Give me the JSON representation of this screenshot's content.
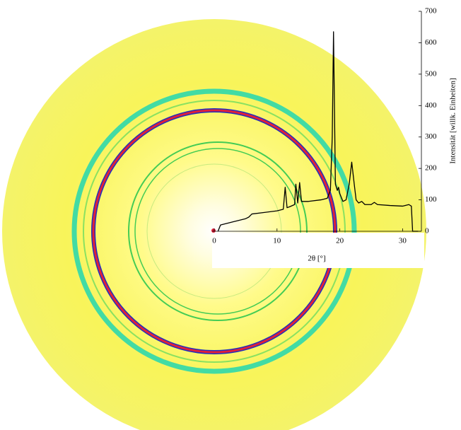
{
  "chart_data": {
    "type": "line",
    "xlabel": "2θ [°]",
    "ylabel": "Intensität [willk. Einheiten]",
    "x": [
      0.6,
      1,
      3,
      5,
      5.5,
      6,
      8,
      10,
      11,
      11.3,
      11.6,
      12,
      12.8,
      13,
      13.3,
      13.6,
      13.9,
      15,
      17,
      18,
      18.5,
      18.8,
      19,
      19.3,
      19.6,
      19.8,
      20,
      20.5,
      21,
      21.5,
      21.9,
      22.3,
      22.6,
      23,
      23.5,
      24,
      25,
      25.5,
      26,
      28,
      30,
      31,
      31.4,
      31.6,
      32.5
    ],
    "values": [
      0,
      20,
      30,
      40,
      45,
      55,
      60,
      65,
      70,
      140,
      75,
      78,
      85,
      150,
      90,
      155,
      95,
      95,
      100,
      105,
      130,
      300,
      635,
      150,
      130,
      140,
      120,
      95,
      100,
      150,
      220,
      150,
      100,
      90,
      95,
      85,
      85,
      92,
      85,
      82,
      80,
      85,
      80,
      0,
      0
    ],
    "color": "#000000",
    "xlim": [
      0,
      33
    ],
    "xticks": [
      0,
      10,
      20,
      30
    ],
    "ylim": [
      0,
      700
    ],
    "yticks": [
      0,
      100,
      200,
      300,
      400,
      500,
      600,
      700
    ]
  }
}
